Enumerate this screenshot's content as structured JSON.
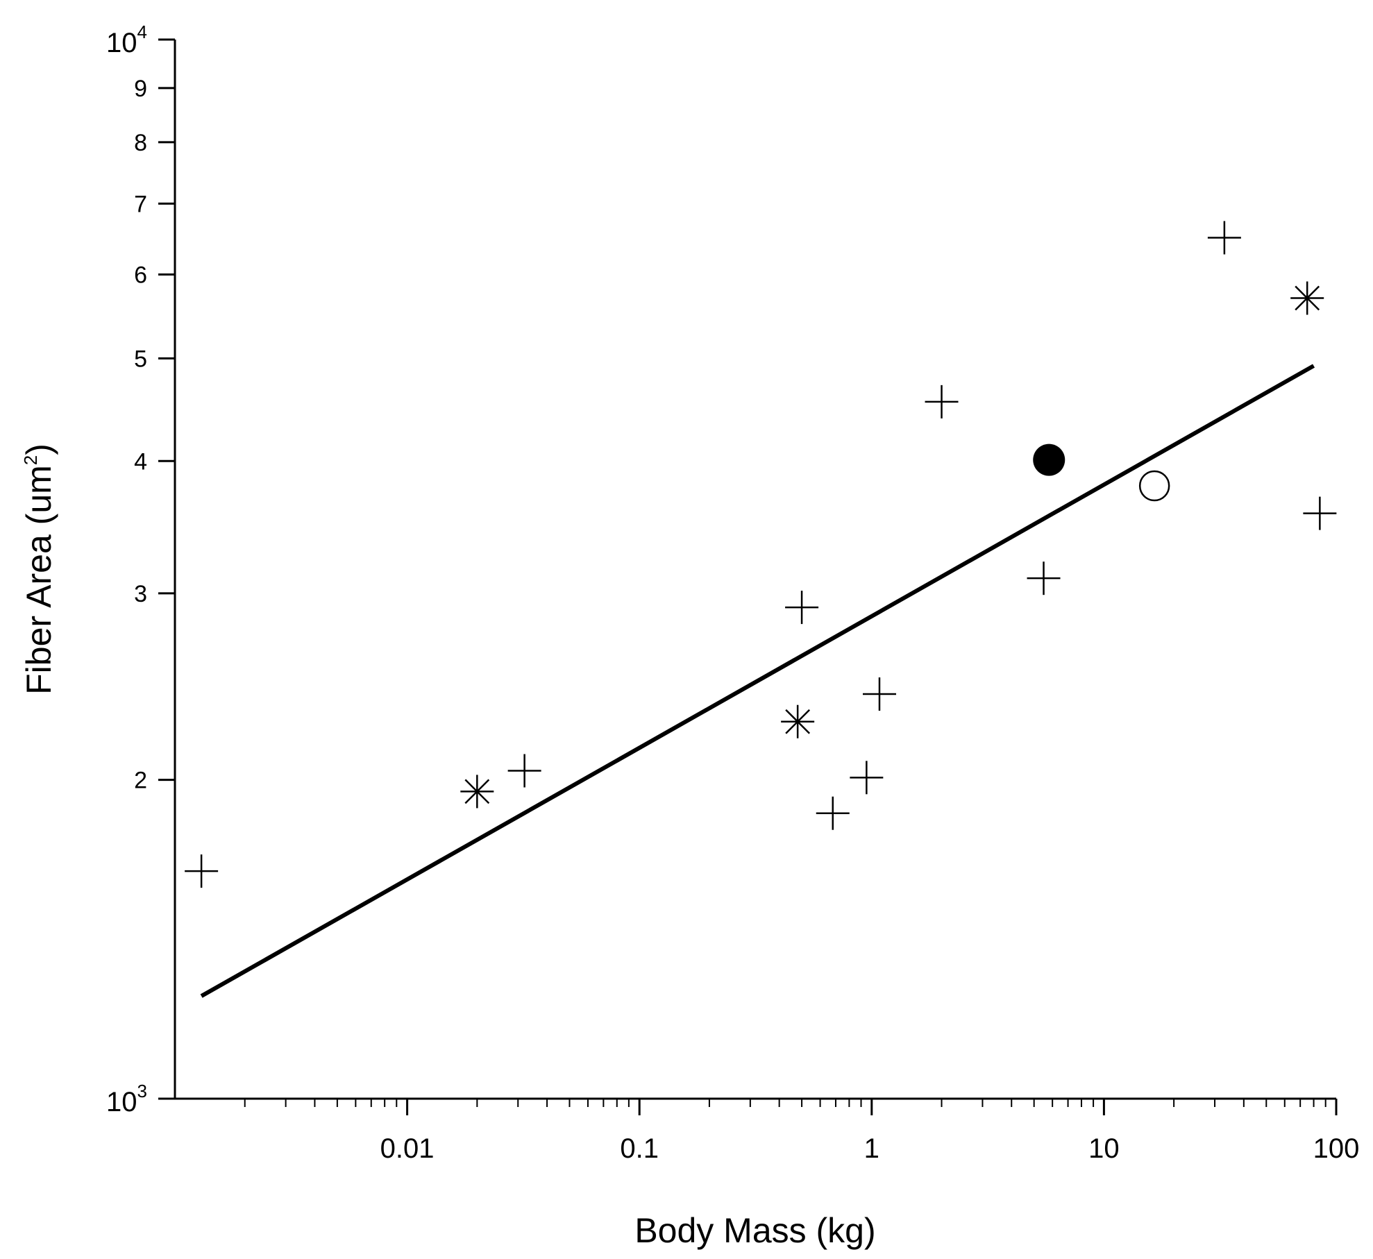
{
  "chart_data": {
    "type": "scatter",
    "title": "",
    "xlabel": "Body Mass (kg)",
    "ylabel": {
      "main": "Fiber Area (um",
      "sup": "2",
      "close": ")"
    },
    "xscale": "log",
    "yscale": "log",
    "xlim": [
      0.001,
      100
    ],
    "ylim": [
      1000,
      10000
    ],
    "grid": false,
    "x_ticks": [
      {
        "value": 0.01,
        "label": "0.01"
      },
      {
        "value": 0.1,
        "label": "0.1"
      },
      {
        "value": 1,
        "label": "1"
      },
      {
        "value": 10,
        "label": "10"
      },
      {
        "value": 100,
        "label": "100"
      }
    ],
    "y_ticks": [
      {
        "value": 1000,
        "base": "10",
        "exp": "3"
      },
      {
        "value": 2000,
        "label": "2"
      },
      {
        "value": 3000,
        "label": "3"
      },
      {
        "value": 4000,
        "label": "4"
      },
      {
        "value": 5000,
        "label": "5"
      },
      {
        "value": 6000,
        "label": "6"
      },
      {
        "value": 7000,
        "label": "7"
      },
      {
        "value": 8000,
        "label": "8"
      },
      {
        "value": 9000,
        "label": "9"
      },
      {
        "value": 10000,
        "base": "10",
        "exp": "4"
      }
    ],
    "series": [
      {
        "name": "plus",
        "marker": "plus",
        "points": [
          {
            "x": 0.0013,
            "y": 1640
          },
          {
            "x": 0.032,
            "y": 2040
          },
          {
            "x": 0.5,
            "y": 2910
          },
          {
            "x": 0.68,
            "y": 1860
          },
          {
            "x": 0.95,
            "y": 2010
          },
          {
            "x": 1.08,
            "y": 2410
          },
          {
            "x": 2.0,
            "y": 4550
          },
          {
            "x": 5.5,
            "y": 3100
          },
          {
            "x": 33,
            "y": 6500
          },
          {
            "x": 85,
            "y": 3570
          }
        ]
      },
      {
        "name": "asterisk",
        "marker": "asterisk",
        "points": [
          {
            "x": 0.02,
            "y": 1950
          },
          {
            "x": 0.48,
            "y": 2270
          },
          {
            "x": 75,
            "y": 5700
          }
        ]
      },
      {
        "name": "filled-circle",
        "marker": "filled-circle",
        "points": [
          {
            "x": 5.8,
            "y": 4010
          }
        ]
      },
      {
        "name": "open-circle",
        "marker": "open-circle",
        "points": [
          {
            "x": 16.5,
            "y": 3790
          }
        ]
      }
    ],
    "fit_line": {
      "x": [
        0.0013,
        80
      ],
      "y": [
        1250,
        4920
      ]
    },
    "colors": {
      "axis": "#000000",
      "marker": "#000000",
      "background": "#ffffff"
    }
  }
}
